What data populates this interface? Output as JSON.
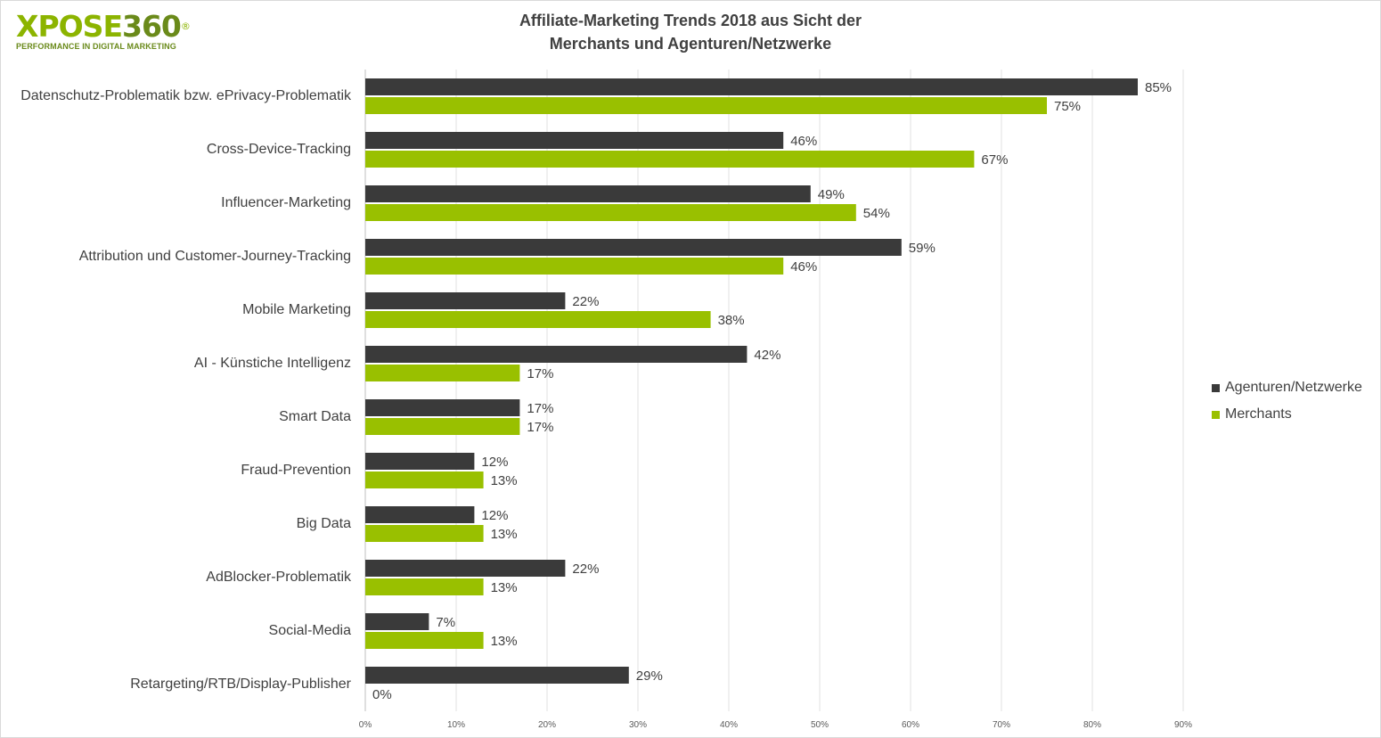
{
  "logo": {
    "text_x": "XPOSE",
    "text_num": "360",
    "registered": "®",
    "tagline": "PERFORMANCE IN DIGITAL MARKETING"
  },
  "chart_data": {
    "type": "bar",
    "orientation": "horizontal",
    "title_line1": "Affiliate-Marketing  Trends  2018 aus Sicht der",
    "title_line2": "Merchants  und  Agenturen/Netzwerke",
    "categories": [
      "Datenschutz-Problematik bzw. ePrivacy-Problematik",
      "Cross-Device-Tracking",
      "Influencer-Marketing",
      "Attribution und Customer-Journey-Tracking",
      "Mobile Marketing",
      "AI - Künstiche Intelligenz",
      "Smart Data",
      "Fraud-Prevention",
      "Big Data",
      "AdBlocker-Problematik",
      "Social-Media",
      "Retargeting/RTB/Display-Publisher"
    ],
    "series": [
      {
        "name": "Agenturen/Netzwerke",
        "color": "#3a3a3a",
        "values": [
          85,
          46,
          49,
          59,
          22,
          42,
          17,
          12,
          12,
          22,
          7,
          29
        ],
        "labels": [
          "85%",
          "46%",
          "49%",
          "59%",
          "22%",
          "42%",
          "17%",
          "12%",
          "12%",
          "22%",
          "7%",
          "29%"
        ]
      },
      {
        "name": "Merchants",
        "color": "#99c000",
        "values": [
          75,
          67,
          54,
          46,
          38,
          17,
          17,
          13,
          13,
          13,
          13,
          0
        ],
        "labels": [
          "75%",
          "67%",
          "54%",
          "46%",
          "38%",
          "17%",
          "17%",
          "13%",
          "13%",
          "13%",
          "13%",
          "0%"
        ]
      }
    ],
    "xlim": [
      0,
      90
    ],
    "xticks": [
      "0%",
      "10%",
      "20%",
      "30%",
      "40%",
      "50%",
      "60%",
      "70%",
      "80%",
      "90%"
    ],
    "grid": true,
    "legend_position": "right"
  }
}
